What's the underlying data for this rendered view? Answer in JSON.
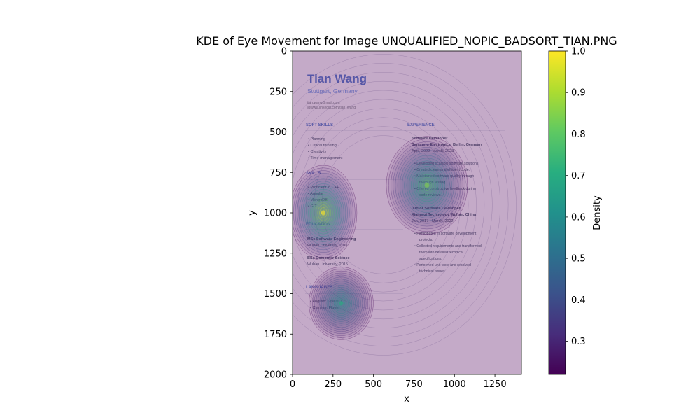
{
  "chart_data": {
    "type": "heatmap",
    "title": "KDE of Eye Movement for Image UNQUALIFIED_NOPIC_BADSORT_TIAN.PNG",
    "xlabel": "x",
    "ylabel": "y",
    "xlim": [
      0,
      1414
    ],
    "ylim": [
      2000,
      0
    ],
    "x_ticks": [
      "0",
      "250",
      "500",
      "750",
      "1000",
      "1250"
    ],
    "x_tick_values": [
      0,
      250,
      500,
      750,
      1000,
      1250
    ],
    "y_ticks": [
      "0",
      "250",
      "500",
      "750",
      "1000",
      "1250",
      "1500",
      "1750",
      "2000"
    ],
    "y_tick_values": [
      0,
      250,
      500,
      750,
      1000,
      1250,
      1500,
      1750,
      2000
    ],
    "colorbar": {
      "label": "Density",
      "ticks": [
        "0.3",
        "0.4",
        "0.5",
        "0.6",
        "0.7",
        "0.8",
        "0.9",
        "1.0"
      ],
      "tick_values": [
        0.3,
        0.4,
        0.5,
        0.6,
        0.7,
        0.8,
        0.9,
        1.0
      ],
      "range": [
        0.22,
        1.0
      ],
      "colormap": "viridis"
    },
    "density_peaks": [
      {
        "x": 190,
        "y": 1000,
        "density": 1.0
      },
      {
        "x": 830,
        "y": 830,
        "density": 0.85
      },
      {
        "x": 300,
        "y": 1560,
        "density": 0.7
      }
    ]
  },
  "background_image": {
    "name": "Tian Wang",
    "location": "Stuttgart, Germany",
    "contact": [
      "tian.wang@mail.com",
      "@www.linkedin.com/tian_wang"
    ],
    "left_sections": [
      {
        "heading": "SOFT SKILLS",
        "items": [
          "Planning",
          "Critical thinking",
          "Creativity",
          "Time-management"
        ]
      },
      {
        "heading": "SKILLS",
        "items": [
          "Proficient in C++",
          "Angular",
          "MongoDB",
          "GIT"
        ]
      },
      {
        "heading": "EDUCATION",
        "items": [
          "MSc Software Engineering",
          "Wuhan University, 2017",
          "BSc Computer Science",
          "Wuhan University, 2015"
        ]
      },
      {
        "heading": "LANGUAGES",
        "items": [
          "English: Level C1",
          "Chinese: Fluent"
        ]
      }
    ],
    "experience_heading": "EXPERIENCE",
    "jobs": [
      {
        "title": "Software Developer",
        "company": "Samsung Electronics, Berlin, Germany",
        "dates": "April, 2022- March, 2023",
        "bullets": [
          "Developed scalable software solutions.",
          "Created clean and efficient code.",
          "Maintained software quality through",
          "thorough testing.",
          "Offered constructive feedback during",
          "code reviews."
        ]
      },
      {
        "title": "Junior Software Developer",
        "company": "Xiangrui Technology Wuhan, China",
        "dates": "Jan, 2017 - March, 2022",
        "bullets": [
          "Participated in software development",
          "projects.",
          "Collected requirements and transformed",
          "them into detailed technical",
          "specifications.",
          "Performed unit tests and resolved",
          "technical issues."
        ]
      }
    ]
  }
}
